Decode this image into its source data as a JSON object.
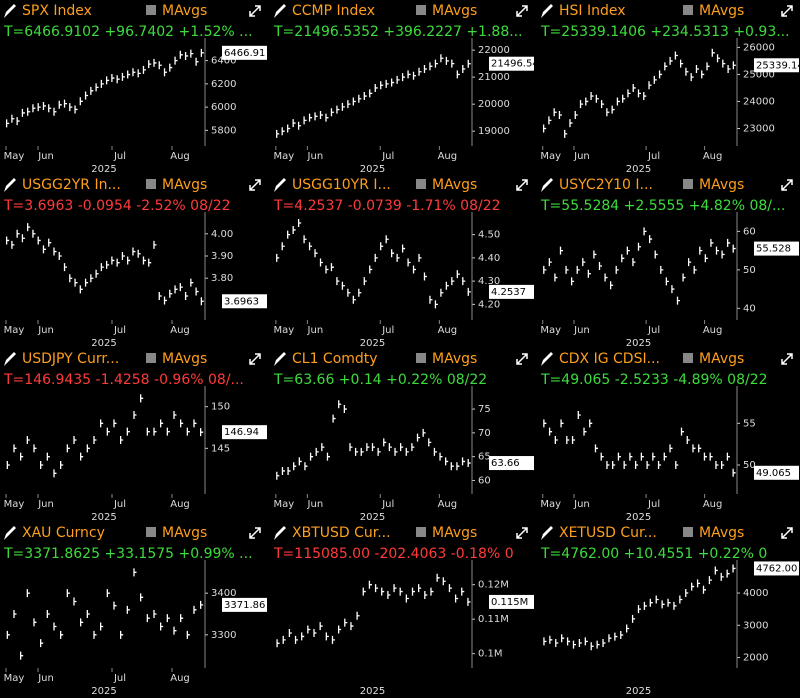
{
  "chart_data": [
    {
      "type": "ohlc",
      "title": "SPX Index",
      "legend": "MAvgs",
      "stats": "T=6466.9102 +96.7402 +1.52% ...",
      "stats_color": "#3ddc3d",
      "x_labels": [
        "May",
        "Jun",
        "Jul",
        "Aug"
      ],
      "x_year": "2025",
      "ylim": [
        5700,
        6560
      ],
      "yticks": [
        5800,
        6000,
        6200,
        6400
      ],
      "last_label": "6466.91",
      "values": [
        5860,
        5900,
        5880,
        5950,
        5960,
        5990,
        6000,
        6010,
        5990,
        5960,
        6020,
        6030,
        6000,
        5980,
        6050,
        6100,
        6140,
        6170,
        6200,
        6230,
        6250,
        6240,
        6260,
        6280,
        6300,
        6290,
        6320,
        6370,
        6380,
        6360,
        6300,
        6340,
        6400,
        6450,
        6440,
        6460,
        6390,
        6466.91
      ]
    },
    {
      "type": "ohlc",
      "title": "CCMP Index",
      "legend": "MAvgs",
      "stats": "T=21496.5352 +396.2227 +1.88...",
      "stats_color": "#3ddc3d",
      "x_labels": [
        "May",
        "Jun",
        "Jul",
        "Aug"
      ],
      "x_year": "2025",
      "ylim": [
        18600,
        22300
      ],
      "yticks": [
        19000,
        20000,
        21000,
        22000
      ],
      "last_label": "21496.54",
      "values": [
        18900,
        19000,
        19100,
        19300,
        19200,
        19400,
        19500,
        19550,
        19600,
        19500,
        19700,
        19800,
        19900,
        20000,
        20100,
        20200,
        20300,
        20400,
        20600,
        20700,
        20750,
        20800,
        20900,
        21000,
        21100,
        21050,
        21200,
        21300,
        21400,
        21500,
        21700,
        21600,
        21500,
        21100,
        21300,
        21496.54
      ]
    },
    {
      "type": "ohlc",
      "title": "HSI Index",
      "legend": "MAvgs",
      "stats": "T=25339.1406 +234.5313 +0.93...",
      "stats_color": "#3ddc3d",
      "x_labels": [
        "May",
        "Jun",
        "Jul",
        "Aug"
      ],
      "x_year": "2025",
      "ylim": [
        22500,
        26200
      ],
      "yticks": [
        23000,
        24000,
        25000,
        26000
      ],
      "last_label": "25339.14",
      "values": [
        23000,
        23300,
        23600,
        23500,
        22800,
        23200,
        23500,
        23900,
        24000,
        24200,
        24100,
        23900,
        23600,
        23700,
        24000,
        24100,
        24300,
        24500,
        24300,
        24200,
        24600,
        24800,
        25000,
        25300,
        25500,
        25700,
        25400,
        25100,
        24900,
        25200,
        25000,
        25300,
        25800,
        25600,
        25400,
        25200,
        25339.14
      ]
    },
    {
      "type": "ohlc",
      "title": "USGG2YR In...",
      "legend": "MAvgs",
      "stats": "T=3.6963 -0.0954 -2.52% 08/22",
      "stats_color": "#ff3b3b",
      "x_labels": [
        "May",
        "Jun",
        "Jul",
        "Aug"
      ],
      "x_year": "2025",
      "ylim": [
        3.63,
        4.08
      ],
      "yticks": [
        {
          "value": 3.8,
          "label": "3.80"
        },
        {
          "value": 3.9,
          "label": "3.90"
        },
        {
          "value": 4,
          "label": "4.00"
        }
      ],
      "last_label": "3.6963",
      "values": [
        3.97,
        3.95,
        4.0,
        3.98,
        4.03,
        4.0,
        3.97,
        3.93,
        3.96,
        3.92,
        3.9,
        3.85,
        3.8,
        3.78,
        3.75,
        3.78,
        3.8,
        3.82,
        3.85,
        3.86,
        3.88,
        3.87,
        3.9,
        3.88,
        3.92,
        3.91,
        3.88,
        3.87,
        3.95,
        3.72,
        3.7,
        3.73,
        3.75,
        3.76,
        3.72,
        3.78,
        3.74,
        3.6963
      ]
    },
    {
      "type": "ohlc",
      "title": "USGG10YR I...",
      "legend": "MAvgs",
      "stats": "T=4.2537 -0.0739 -1.71% 08/22",
      "stats_color": "#ff3b3b",
      "x_labels": [
        "May",
        "Jun",
        "Jul",
        "Aug"
      ],
      "x_year": "2025",
      "ylim": [
        4.15,
        4.58
      ],
      "yticks": [
        {
          "value": 4.2,
          "label": "4.20"
        },
        {
          "value": 4.3,
          "label": "4.30"
        },
        {
          "value": 4.4,
          "label": "4.40"
        },
        {
          "value": 4.5,
          "label": "4.50"
        }
      ],
      "last_label": "4.2537",
      "values": [
        4.4,
        4.45,
        4.5,
        4.52,
        4.55,
        4.48,
        4.45,
        4.42,
        4.38,
        4.35,
        4.36,
        4.3,
        4.28,
        4.25,
        4.22,
        4.25,
        4.3,
        4.35,
        4.4,
        4.45,
        4.48,
        4.42,
        4.4,
        4.44,
        4.38,
        4.35,
        4.4,
        4.32,
        4.22,
        4.2,
        4.25,
        4.28,
        4.3,
        4.33,
        4.3,
        4.2537
      ]
    },
    {
      "type": "ohlc",
      "title": "USYC2Y10 I...",
      "legend": "MAvgs",
      "stats": "T=55.5284 +2.5555 +4.82% 08/...",
      "stats_color": "#3ddc3d",
      "x_labels": [
        "May",
        "Jun",
        "Jul",
        "Aug"
      ],
      "x_year": "2025",
      "ylim": [
        38,
        64
      ],
      "yticks": [
        40,
        50,
        60
      ],
      "last_label": "55.528",
      "values": [
        50,
        52,
        48,
        55,
        50,
        47,
        50,
        52,
        49,
        54,
        51,
        48,
        46,
        50,
        53,
        55,
        52,
        56,
        60,
        58,
        54,
        50,
        47,
        45,
        42,
        48,
        52,
        50,
        55,
        53,
        57,
        55,
        54,
        57,
        55.528
      ]
    },
    {
      "type": "ohlc",
      "title": "USDJPY Curr...",
      "legend": "MAvgs",
      "stats": "T=146.9435 -1.4258 -0.96% 08/...",
      "stats_color": "#ff3b3b",
      "x_labels": [
        "May",
        "Jun",
        "Jul",
        "Aug"
      ],
      "x_year": "2025",
      "ylim": [
        140,
        152
      ],
      "yticks": [
        145,
        150
      ],
      "last_label": "146.94",
      "values": [
        143,
        145,
        144,
        146,
        145,
        143,
        144,
        142,
        143,
        145,
        146,
        144,
        145,
        146,
        148,
        147,
        148,
        146,
        147,
        149,
        151,
        147,
        147,
        148,
        147,
        149,
        148,
        147,
        148,
        146.94
      ]
    },
    {
      "type": "ohlc",
      "title": "CL1 Comdty",
      "legend": "MAvgs",
      "stats": "T=63.66 +0.14 +0.22% 08/22",
      "stats_color": "#3ddc3d",
      "x_labels": [
        "May",
        "Jun",
        "Jul",
        "Aug"
      ],
      "x_year": "2025",
      "ylim": [
        58,
        79
      ],
      "yticks": [
        60,
        65,
        70,
        75
      ],
      "last_label": "63.66",
      "values": [
        61,
        62,
        62,
        63,
        64,
        63,
        65,
        66,
        67,
        65,
        73,
        76,
        75,
        67,
        66,
        66,
        67,
        67,
        66,
        68,
        67,
        66,
        67,
        66,
        67,
        69,
        70,
        68,
        66,
        65,
        64,
        63,
        63,
        64,
        63.66
      ]
    },
    {
      "type": "ohlc",
      "title": "CDX IG CDSI...",
      "legend": "MAvgs",
      "stats": "T=49.065 -2.5233 -4.89% 08/22",
      "stats_color": "#3ddc3d",
      "x_labels": [
        "May",
        "Jun",
        "Jul",
        "Aug"
      ],
      "x_year": "2025",
      "ylim": [
        47,
        59
      ],
      "yticks": [
        50,
        55
      ],
      "last_label": "49.065",
      "values": [
        55,
        54,
        53,
        55,
        53,
        53,
        56,
        54,
        55,
        52,
        51,
        50,
        50,
        51,
        50,
        51,
        50,
        51,
        50,
        51,
        50,
        51,
        52,
        50,
        54,
        53,
        52,
        52,
        51,
        51,
        50,
        50,
        51,
        49.065
      ]
    },
    {
      "type": "ohlc",
      "title": "XAU Curncy",
      "legend": "MAvgs",
      "stats": "T=3371.8625 +33.1575 +0.99% ...",
      "stats_color": "#3ddc3d",
      "x_labels": [
        "May",
        "Jun",
        "Jul",
        "Aug"
      ],
      "x_year": "2025",
      "ylim": [
        3230,
        3470
      ],
      "yticks": [
        3300,
        3400
      ],
      "last_label": "3371.86",
      "values": [
        3300,
        3350,
        3250,
        3400,
        3330,
        3280,
        3350,
        3320,
        3300,
        3400,
        3380,
        3330,
        3350,
        3300,
        3320,
        3400,
        3370,
        3300,
        3360,
        3450,
        3390,
        3340,
        3350,
        3320,
        3340,
        3310,
        3340,
        3300,
        3360,
        3371.86
      ]
    },
    {
      "type": "ohlc",
      "title": "XBTUSD Cur...",
      "legend": "MAvgs",
      "stats": "T=115085.00 -202.4063 -0.18% 0",
      "stats_color": "#ff3b3b",
      "x_year": "2025",
      "ylim": [
        97000,
        126000
      ],
      "yticks": [
        {
          "value": 100000,
          "label": "0.1M"
        },
        {
          "value": 110000,
          "label": "0.11M"
        },
        {
          "value": 120000,
          "label": "0.12M"
        }
      ],
      "last_label": "0.115M",
      "values": [
        103000,
        104000,
        106000,
        104000,
        105000,
        107000,
        106000,
        108000,
        105000,
        104000,
        107000,
        109000,
        108000,
        111000,
        118000,
        120000,
        119000,
        118000,
        117000,
        119000,
        118000,
        116000,
        118000,
        119000,
        117000,
        118000,
        122000,
        121000,
        119000,
        116000,
        118000,
        115000
      ]
    },
    {
      "type": "ohlc",
      "title": "XETUSD Cur...",
      "legend": "MAvgs",
      "stats": "T=4762.00 +10.4551 +0.22% 0",
      "stats_color": "#3ddc3d",
      "x_year": "2025",
      "ylim": [
        1800,
        4900
      ],
      "yticks": [
        2000,
        3000,
        4000
      ],
      "last_label": "4762.00",
      "values": [
        2500,
        2550,
        2450,
        2600,
        2500,
        2400,
        2450,
        2500,
        2350,
        2400,
        2450,
        2600,
        2650,
        2700,
        2900,
        3200,
        3500,
        3600,
        3700,
        3800,
        3650,
        3700,
        3600,
        3800,
        4000,
        4200,
        4300,
        4100,
        4400,
        4700,
        4500,
        4600,
        4762
      ]
    }
  ]
}
